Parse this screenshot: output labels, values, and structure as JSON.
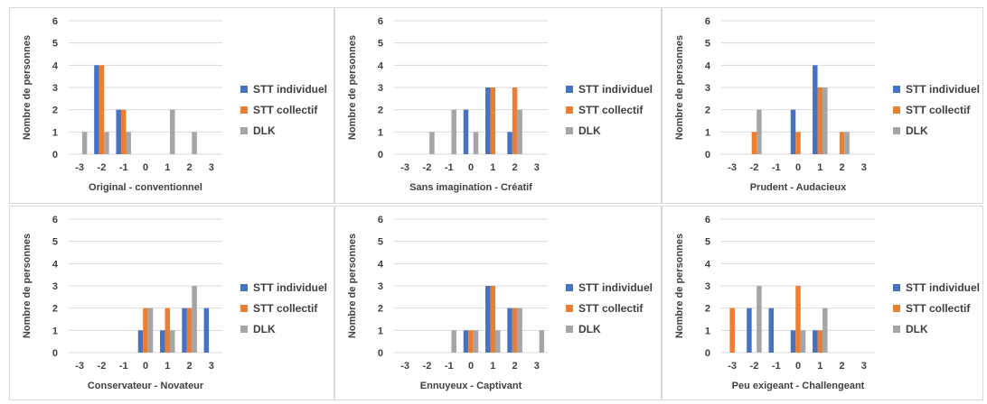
{
  "legend": [
    "STT individuel",
    "STT collectif",
    "DLK"
  ],
  "colors": {
    "STT individuel": "#4472c4",
    "STT collectif": "#ed7d31",
    "DLK": "#a5a5a5"
  },
  "chart_data": [
    {
      "type": "bar",
      "xlabel": "Original - conventionnel",
      "ylabel": "Nombre de personnes",
      "categories": [
        "-3",
        "-2",
        "-1",
        "0",
        "1",
        "2",
        "3"
      ],
      "ylim": [
        0,
        6
      ],
      "series": [
        {
          "name": "STT individuel",
          "values": [
            0,
            4,
            2,
            0,
            0,
            0,
            0
          ]
        },
        {
          "name": "STT collectif",
          "values": [
            0,
            4,
            2,
            0,
            0,
            0,
            0
          ]
        },
        {
          "name": "DLK",
          "values": [
            1,
            1,
            1,
            0,
            2,
            1,
            0
          ]
        }
      ]
    },
    {
      "type": "bar",
      "xlabel": "Sans imagination - Créatif",
      "ylabel": "Nombre de personnes",
      "categories": [
        "-3",
        "-2",
        "-1",
        "0",
        "1",
        "2",
        "3"
      ],
      "ylim": [
        0,
        6
      ],
      "series": [
        {
          "name": "STT individuel",
          "values": [
            0,
            0,
            0,
            2,
            3,
            1,
            0
          ]
        },
        {
          "name": "STT collectif",
          "values": [
            0,
            0,
            0,
            0,
            3,
            3,
            0
          ]
        },
        {
          "name": "DLK",
          "values": [
            0,
            1,
            2,
            1,
            0,
            2,
            0
          ]
        }
      ]
    },
    {
      "type": "bar",
      "xlabel": "Prudent - Audacieux",
      "ylabel": "Nombre de personnes",
      "categories": [
        "-3",
        "-2",
        "-1",
        "0",
        "1",
        "2",
        "3"
      ],
      "ylim": [
        0,
        6
      ],
      "series": [
        {
          "name": "STT individuel",
          "values": [
            0,
            0,
            0,
            2,
            4,
            0,
            0
          ]
        },
        {
          "name": "STT collectif",
          "values": [
            0,
            1,
            0,
            1,
            3,
            1,
            0
          ]
        },
        {
          "name": "DLK",
          "values": [
            0,
            2,
            0,
            0,
            3,
            1,
            0
          ]
        }
      ]
    },
    {
      "type": "bar",
      "xlabel": "Conservateur - Novateur",
      "ylabel": "Nombre de personnes",
      "categories": [
        "-3",
        "-2",
        "-1",
        "0",
        "1",
        "2",
        "3"
      ],
      "ylim": [
        0,
        6
      ],
      "series": [
        {
          "name": "STT individuel",
          "values": [
            0,
            0,
            0,
            1,
            1,
            2,
            2
          ]
        },
        {
          "name": "STT collectif",
          "values": [
            0,
            0,
            0,
            2,
            2,
            2,
            0
          ]
        },
        {
          "name": "DLK",
          "values": [
            0,
            0,
            0,
            2,
            1,
            3,
            0
          ]
        }
      ]
    },
    {
      "type": "bar",
      "xlabel": "Ennuyeux - Captivant",
      "ylabel": "Nombre de personnes",
      "categories": [
        "-3",
        "-2",
        "-1",
        "0",
        "1",
        "2",
        "3"
      ],
      "ylim": [
        0,
        6
      ],
      "series": [
        {
          "name": "STT individuel",
          "values": [
            0,
            0,
            0,
            1,
            3,
            2,
            0
          ]
        },
        {
          "name": "STT collectif",
          "values": [
            0,
            0,
            0,
            1,
            3,
            2,
            0
          ]
        },
        {
          "name": "DLK",
          "values": [
            0,
            0,
            1,
            1,
            1,
            2,
            1
          ]
        }
      ]
    },
    {
      "type": "bar",
      "xlabel": "Peu exigeant - Challengeant",
      "ylabel": "Nombre de personnes",
      "categories": [
        "-3",
        "-2",
        "-1",
        "0",
        "1",
        "2",
        "3"
      ],
      "ylim": [
        0,
        6
      ],
      "series": [
        {
          "name": "STT individuel",
          "values": [
            0,
            2,
            2,
            1,
            1,
            0,
            0
          ]
        },
        {
          "name": "STT collectif",
          "values": [
            2,
            0,
            0,
            3,
            1,
            0,
            0
          ]
        },
        {
          "name": "DLK",
          "values": [
            0,
            3,
            0,
            1,
            2,
            0,
            0
          ]
        }
      ]
    }
  ]
}
